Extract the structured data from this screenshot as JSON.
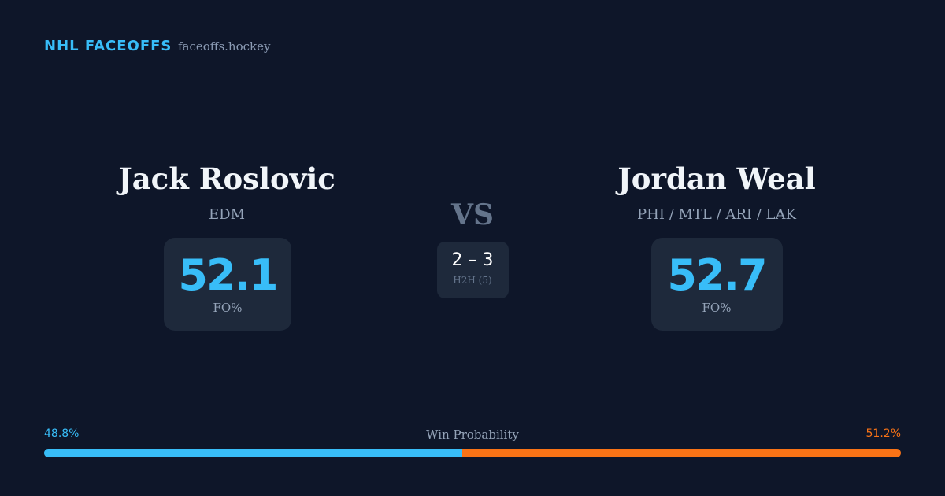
{
  "header": {
    "brand": "NHL FACEOFFS",
    "site": "faceoffs.hockey"
  },
  "players": [
    {
      "name": "Jack Roslovic",
      "teams": "EDM",
      "stat": "52.1",
      "stat_label": "FO%"
    },
    {
      "name": "Jordan Weal",
      "teams": "PHI / MTL / ARI / LAK",
      "stat": "52.7",
      "stat_label": "FO%"
    }
  ],
  "versus": "VS",
  "h2h": {
    "record": "2 – 3",
    "label": "H2H (5)"
  },
  "win_probability": {
    "label": "Win Probability",
    "left": {
      "value": 48.8,
      "label": "48.8%",
      "color": "#38bdf8"
    },
    "right": {
      "value": 51.2,
      "label": "51.2%",
      "color": "#f97316"
    }
  }
}
